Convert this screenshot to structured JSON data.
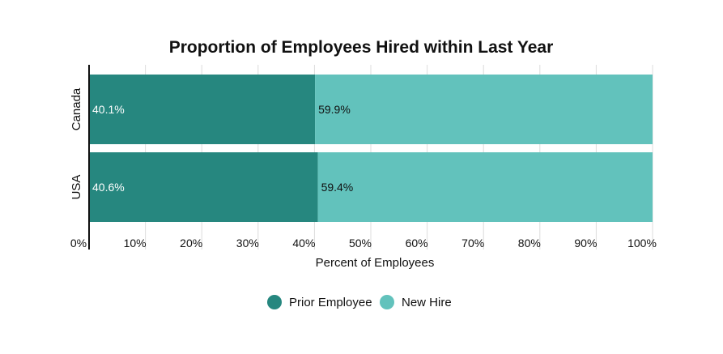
{
  "chart_data": {
    "type": "bar",
    "orientation": "horizontal",
    "stacked": true,
    "title": "Proportion of Employees Hired within Last Year",
    "xlabel": "Percent of Employees",
    "ylabel": "",
    "xlim": [
      0,
      100
    ],
    "x_ticks": [
      "0%",
      "10%",
      "20%",
      "30%",
      "40%",
      "50%",
      "60%",
      "70%",
      "80%",
      "90%",
      "100%"
    ],
    "categories": [
      "Canada",
      "USA"
    ],
    "series": [
      {
        "name": "Prior Employee",
        "values": [
          40.1,
          40.6
        ],
        "labels": [
          "40.1%",
          "40.6%"
        ],
        "color": "#26877f"
      },
      {
        "name": "New Hire",
        "values": [
          59.9,
          59.4
        ],
        "labels": [
          "59.9%",
          "59.4%"
        ],
        "color": "#62c2bc"
      }
    ],
    "grid": true,
    "legend_position": "bottom"
  }
}
